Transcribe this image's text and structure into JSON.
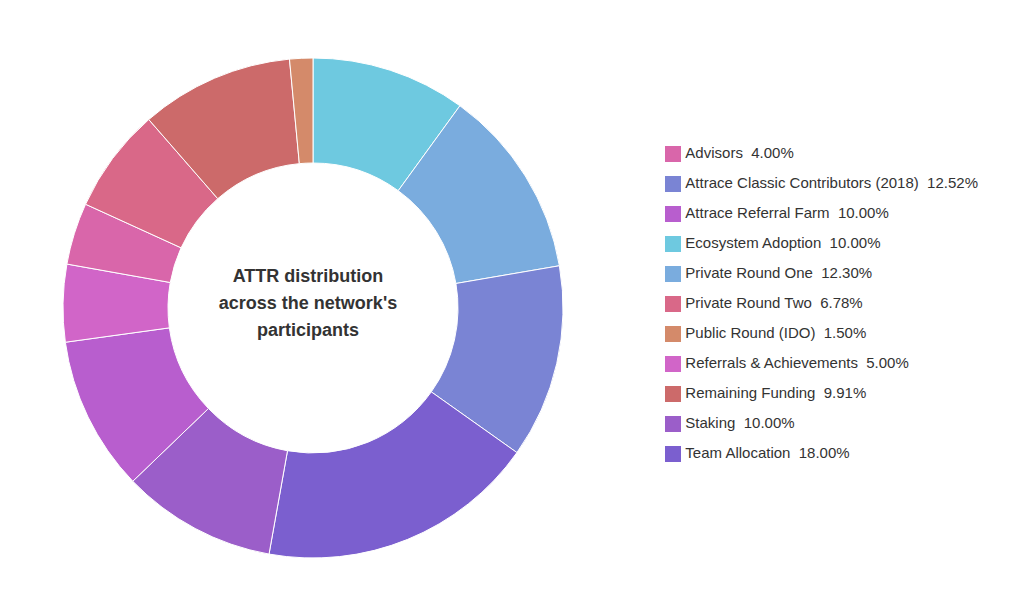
{
  "chart_data": {
    "type": "pie",
    "title": "ATTR distribution\nacross the network's\nparticipants",
    "categories": [
      "Ecosystem Adoption  10.00%",
      "Private Round One  12.30%",
      "Attrace Classic Contributors (2018)  12.52%",
      "Team Allocation  18.00%",
      "Staking  10.00%",
      "Attrace Referral Farm  10.00%",
      "Referrals & Achievements  5.00%",
      "Advisors  4.00%",
      "Private Round Two  6.78%",
      "Remaining Funding  9.91%",
      "Public Round (IDO)  1.50%"
    ],
    "values": [
      10.0,
      12.3,
      12.52,
      18.0,
      10.0,
      10.0,
      5.0,
      4.0,
      6.78,
      9.91,
      1.5
    ],
    "colors": [
      "#6ec9e0",
      "#7aacde",
      "#7a84d4",
      "#7b5fcf",
      "#9b5ec9",
      "#b85ece",
      "#d165c8",
      "#d966aa",
      "#d96888",
      "#cc6a6a",
      "#d48a6a"
    ],
    "legend": "right"
  }
}
